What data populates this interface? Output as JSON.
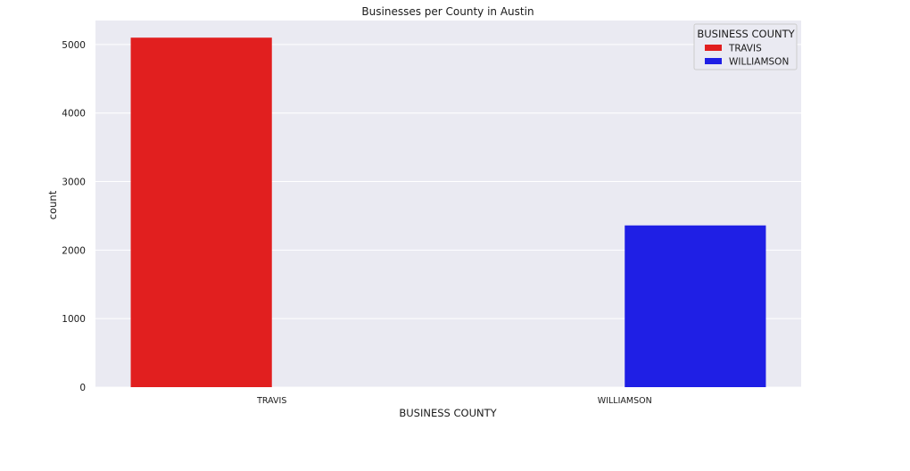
{
  "chart_data": {
    "type": "bar",
    "title": "Businesses per County in Austin",
    "xlabel": "BUSINESS COUNTY",
    "ylabel": "count",
    "categories": [
      "TRAVIS",
      "WILLIAMSON"
    ],
    "series": [
      {
        "name": "TRAVIS",
        "values": [
          5100,
          null
        ],
        "color": "#e11f1f"
      },
      {
        "name": "WILLIAMSON",
        "values": [
          null,
          2360
        ],
        "color": "#1f1fe5"
      }
    ],
    "ylim": [
      0,
      5350
    ],
    "yticks": [
      0,
      1000,
      2000,
      3000,
      4000,
      5000
    ],
    "grid": true,
    "legend": {
      "title": "BUSINESS COUNTY",
      "placement": "top-right",
      "entries": [
        "TRAVIS",
        "WILLIAMSON"
      ]
    },
    "background_color": "#eaeaf2",
    "grid_color": "#ffffff"
  }
}
